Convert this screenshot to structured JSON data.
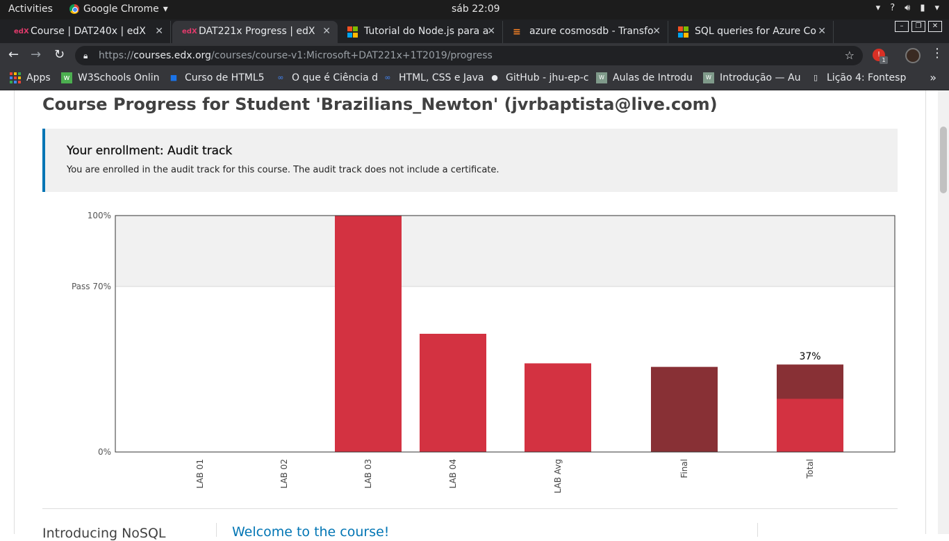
{
  "system": {
    "activities": "Activities",
    "app_name": "Google Chrome",
    "clock": "sáb 22:09"
  },
  "tabs": [
    {
      "label": "Course | DAT240x | edX",
      "favicon": "edx-icon"
    },
    {
      "label": "DAT221x Progress | edX",
      "favicon": "edx-icon"
    },
    {
      "label": "Tutorial do Node.js para a",
      "favicon": "microsoft-icon"
    },
    {
      "label": "azure cosmosdb - Transfo",
      "favicon": "stackoverflow-icon"
    },
    {
      "label": "SQL queries for Azure Co",
      "favicon": "microsoft-icon"
    }
  ],
  "address": {
    "scheme": "https://",
    "host": "courses.edx.org",
    "path": "/courses/course-v1:Microsoft+DAT221x+1T2019/progress"
  },
  "extension_badge": "1",
  "bookmarks": [
    {
      "label": "Apps"
    },
    {
      "label": "W3Schools Onlin"
    },
    {
      "label": "Curso de HTML5"
    },
    {
      "label": "O que é Ciência d"
    },
    {
      "label": "HTML, CSS e Java"
    },
    {
      "label": "GitHub - jhu-ep-c"
    },
    {
      "label": "Aulas de Introdu"
    },
    {
      "label": "Introdução — Au"
    },
    {
      "label": "Lição 4: Fontesp"
    }
  ],
  "page": {
    "title": "Course Progress for Student 'Brazilians_Newton' (jvrbaptista@live.com)",
    "enrollment": {
      "heading": "Your enrollment: Audit track",
      "message": "You are enrolled in the audit track for this course. The audit track does not include a certificate."
    },
    "chapter_title": "Introducing NoSQL",
    "section_link": "Welcome to the course!"
  },
  "colors": {
    "bar_scored": "#d33241",
    "bar_summary": "#883035",
    "pass_zone": "#f1f1f1",
    "link": "#0075b4"
  },
  "chart_data": {
    "type": "bar",
    "categories": [
      "LAB 01",
      "LAB 02",
      "LAB 03",
      "LAB 04",
      "LAB Avg",
      "Final",
      "Total"
    ],
    "values": [
      0,
      0,
      100,
      50,
      37.5,
      36,
      37
    ],
    "stacked_total": {
      "lab_portion": 22.5,
      "final_portion": 14.5
    },
    "ylim": [
      0,
      100
    ],
    "y_ticks": [
      {
        "value": 0,
        "label": "0%"
      },
      {
        "value": 70,
        "label": "Pass 70%"
      },
      {
        "value": 100,
        "label": "100%"
      }
    ],
    "pass_threshold": 70,
    "total_label": "37%"
  }
}
